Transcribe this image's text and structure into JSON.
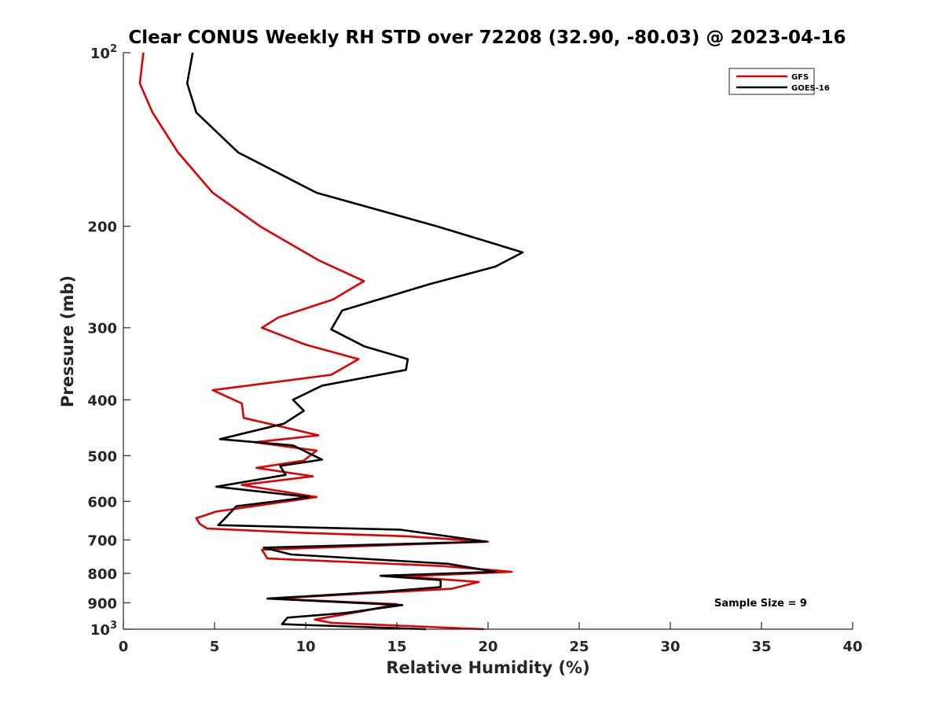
{
  "chart_data": {
    "type": "line",
    "title": "Clear CONUS Weekly RH STD over 72208 (32.90, -80.03) @ 2023-04-16",
    "xlabel": "Relative Humidity (%)",
    "ylabel": "Pressure (mb)",
    "xlim": [
      0,
      40
    ],
    "ylim": [
      100,
      1000
    ],
    "yscale": "log",
    "y_reversed": true,
    "grid": false,
    "legend_position": "top-right",
    "x_ticks": [
      0,
      5,
      10,
      15,
      20,
      25,
      30,
      35,
      40
    ],
    "x_tick_labels": [
      "0",
      "5",
      "10",
      "15",
      "20",
      "25",
      "30",
      "35",
      "40"
    ],
    "y_ticks": [
      100,
      200,
      300,
      400,
      500,
      600,
      700,
      800,
      900,
      1000
    ],
    "y_tick_labels": [
      {
        "base": "10",
        "exp": "2"
      },
      {
        "base": "200",
        "exp": ""
      },
      {
        "base": "300",
        "exp": ""
      },
      {
        "base": "400",
        "exp": ""
      },
      {
        "base": "500",
        "exp": ""
      },
      {
        "base": "600",
        "exp": ""
      },
      {
        "base": "700",
        "exp": ""
      },
      {
        "base": "800",
        "exp": ""
      },
      {
        "base": "900",
        "exp": ""
      },
      {
        "base": "10",
        "exp": "3"
      }
    ],
    "annotation": "Sample Size = 9",
    "series": [
      {
        "name": "GFS",
        "color": "#e00000",
        "points": [
          [
            1.1,
            100
          ],
          [
            0.9,
            113
          ],
          [
            1.6,
            127
          ],
          [
            3.0,
            149
          ],
          [
            4.9,
            175
          ],
          [
            7.5,
            200
          ],
          [
            10.7,
            229
          ],
          [
            13.2,
            249
          ],
          [
            11.5,
            268
          ],
          [
            8.5,
            288
          ],
          [
            7.6,
            300
          ],
          [
            10.0,
            321
          ],
          [
            12.9,
            340
          ],
          [
            11.4,
            362
          ],
          [
            4.9,
            385
          ],
          [
            6.5,
            406
          ],
          [
            6.6,
            430
          ],
          [
            10.7,
            461
          ],
          [
            7.2,
            474
          ],
          [
            10.6,
            490
          ],
          [
            9.9,
            510
          ],
          [
            7.3,
            525
          ],
          [
            10.4,
            543
          ],
          [
            6.5,
            562
          ],
          [
            10.6,
            590
          ],
          [
            5.1,
            625
          ],
          [
            4.0,
            642
          ],
          [
            4.2,
            657
          ],
          [
            4.6,
            669
          ],
          [
            9.5,
            680
          ],
          [
            15.6,
            690
          ],
          [
            20.0,
            705
          ],
          [
            7.6,
            728
          ],
          [
            7.9,
            754
          ],
          [
            17.5,
            777
          ],
          [
            21.3,
            795
          ],
          [
            15.3,
            810
          ],
          [
            19.5,
            828
          ],
          [
            18.0,
            851
          ],
          [
            8.2,
            885
          ],
          [
            15.0,
            905
          ],
          [
            13.1,
            931
          ],
          [
            10.5,
            962
          ],
          [
            11.4,
            975
          ],
          [
            19.8,
            1000
          ]
        ]
      },
      {
        "name": "GOES-16",
        "color": "#000000",
        "points": [
          [
            3.8,
            100
          ],
          [
            3.5,
            113
          ],
          [
            4.0,
            127
          ],
          [
            6.3,
            149
          ],
          [
            10.6,
            175
          ],
          [
            17.2,
            200
          ],
          [
            21.9,
            222
          ],
          [
            20.4,
            235
          ],
          [
            16.8,
            252
          ],
          [
            12.0,
            280
          ],
          [
            11.4,
            302
          ],
          [
            13.2,
            323
          ],
          [
            15.6,
            340
          ],
          [
            15.5,
            355
          ],
          [
            10.9,
            378
          ],
          [
            9.3,
            400
          ],
          [
            9.9,
            418
          ],
          [
            8.8,
            440
          ],
          [
            5.3,
            468
          ],
          [
            9.3,
            480
          ],
          [
            10.9,
            508
          ],
          [
            8.6,
            521
          ],
          [
            8.9,
            540
          ],
          [
            5.1,
            566
          ],
          [
            10.2,
            590
          ],
          [
            6.2,
            612
          ],
          [
            5.5,
            646
          ],
          [
            5.2,
            660
          ],
          [
            15.2,
            672
          ],
          [
            19.9,
            705
          ],
          [
            7.7,
            722
          ],
          [
            9.2,
            742
          ],
          [
            17.8,
            770
          ],
          [
            20.4,
            795
          ],
          [
            14.1,
            808
          ],
          [
            17.4,
            822
          ],
          [
            17.4,
            845
          ],
          [
            14.4,
            860
          ],
          [
            7.9,
            885
          ],
          [
            15.3,
            908
          ],
          [
            12.2,
            937
          ],
          [
            9.0,
            955
          ],
          [
            8.7,
            980
          ],
          [
            16.6,
            1000
          ]
        ]
      }
    ]
  }
}
